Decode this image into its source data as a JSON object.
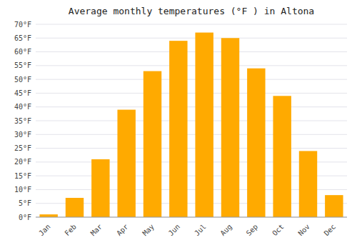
{
  "chart_data": {
    "type": "bar",
    "title": "Average monthly temperatures (°F ) in Altona",
    "categories": [
      "Jan",
      "Feb",
      "Mar",
      "Apr",
      "May",
      "Jun",
      "Jul",
      "Aug",
      "Sep",
      "Oct",
      "Nov",
      "Dec"
    ],
    "values": [
      1,
      7,
      21,
      39,
      53,
      64,
      67,
      65,
      54,
      44,
      24,
      8
    ],
    "color": "#FFAA00",
    "ylim": [
      0,
      70
    ],
    "yticks": [
      {
        "value": 0,
        "label": "0°F"
      },
      {
        "value": 5,
        "label": "5°F"
      },
      {
        "value": 10,
        "label": "10°F"
      },
      {
        "value": 15,
        "label": "15°F"
      },
      {
        "value": 20,
        "label": "20°F"
      },
      {
        "value": 25,
        "label": "25°F"
      },
      {
        "value": 30,
        "label": "30°F"
      },
      {
        "value": 35,
        "label": "35°F"
      },
      {
        "value": 40,
        "label": "40°F"
      },
      {
        "value": 45,
        "label": "45°F"
      },
      {
        "value": 50,
        "label": "50°F"
      },
      {
        "value": 55,
        "label": "55°F"
      },
      {
        "value": 60,
        "label": "60°F"
      },
      {
        "value": 65,
        "label": "65°F"
      },
      {
        "value": 70,
        "label": "70°F"
      }
    ],
    "grid": true
  }
}
